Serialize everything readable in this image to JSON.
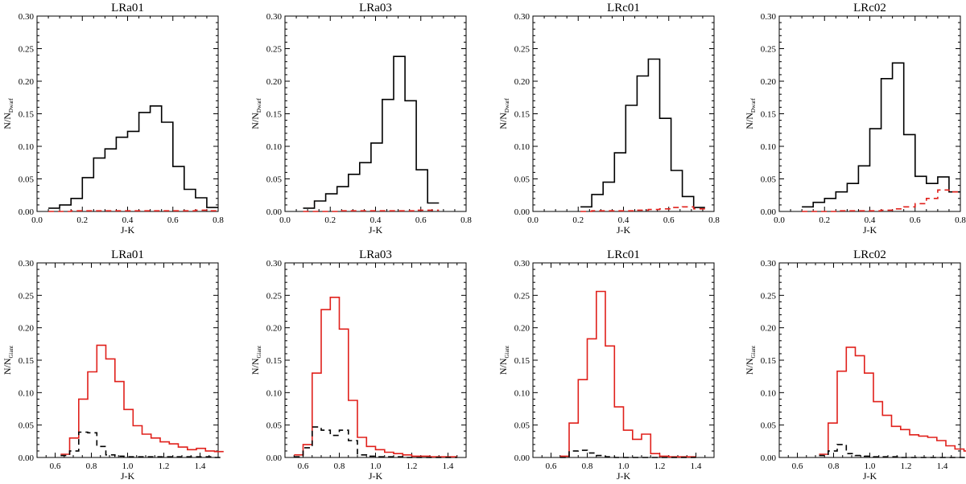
{
  "colors": {
    "black": "#000000",
    "red": "#e0201b"
  },
  "chart_data": [
    {
      "type": "line",
      "title": "LRa01",
      "xlabel": "J-K",
      "ylabel_main": "N/N",
      "ylabel_sub": "Dwarf",
      "xlim": [
        0.0,
        0.8
      ],
      "ylim": [
        0.0,
        0.3
      ],
      "xticks": [
        "0.0",
        "0.2",
        "0.4",
        "0.6",
        "0.8"
      ],
      "xtick_values": [
        0.0,
        0.2,
        0.4,
        0.6,
        0.8
      ],
      "yticks": [
        "0.00",
        "0.05",
        "0.10",
        "0.15",
        "0.20",
        "0.25",
        "0.30"
      ],
      "ytick_values": [
        0.0,
        0.05,
        0.1,
        0.15,
        0.2,
        0.25,
        0.3
      ],
      "bin_width": 0.05,
      "series": [
        {
          "name": "solid",
          "color": "#000000",
          "style": "solid",
          "x_start": 0.05,
          "values": [
            0.005,
            0.01,
            0.02,
            0.052,
            0.082,
            0.096,
            0.114,
            0.123,
            0.152,
            0.162,
            0.137,
            0.069,
            0.034,
            0.021,
            0.006
          ]
        },
        {
          "name": "dashed",
          "color": "#e0201b",
          "style": "dashed",
          "x_start": 0.05,
          "values": [
            0.0,
            0.0,
            0.001,
            0.001,
            0.001,
            0.001,
            0.001,
            0.001,
            0.001,
            0.001,
            0.001,
            0.001,
            0.001,
            0.002,
            0.001
          ]
        }
      ]
    },
    {
      "type": "line",
      "title": "LRa03",
      "xlabel": "J-K",
      "ylabel_main": "N/N",
      "ylabel_sub": "Dwarf",
      "xlim": [
        0.0,
        0.8
      ],
      "ylim": [
        0.0,
        0.3
      ],
      "xticks": [
        "0.0",
        "0.2",
        "0.4",
        "0.6",
        "0.8"
      ],
      "xtick_values": [
        0.0,
        0.2,
        0.4,
        0.6,
        0.8
      ],
      "yticks": [
        "0.00",
        "0.05",
        "0.10",
        "0.15",
        "0.20",
        "0.25",
        "0.30"
      ],
      "ytick_values": [
        0.0,
        0.05,
        0.1,
        0.15,
        0.2,
        0.25,
        0.3
      ],
      "bin_width": 0.05,
      "series": [
        {
          "name": "solid",
          "color": "#000000",
          "style": "solid",
          "x_start": 0.08,
          "values": [
            0.005,
            0.016,
            0.027,
            0.038,
            0.057,
            0.075,
            0.105,
            0.172,
            0.238,
            0.17,
            0.064,
            0.013
          ]
        },
        {
          "name": "dashed",
          "color": "#e0201b",
          "style": "dashed",
          "x_start": 0.08,
          "values": [
            0.0,
            0.0,
            0.0,
            0.001,
            0.001,
            0.001,
            0.001,
            0.001,
            0.001,
            0.001,
            0.002,
            0.002
          ]
        }
      ]
    },
    {
      "type": "line",
      "title": "LRc01",
      "xlabel": "J-K",
      "ylabel_main": "N/N",
      "ylabel_sub": "Dwarf",
      "xlim": [
        0.0,
        0.8
      ],
      "ylim": [
        0.0,
        0.3
      ],
      "xticks": [
        "0.0",
        "0.2",
        "0.4",
        "0.6",
        "0.8"
      ],
      "xtick_values": [
        0.0,
        0.2,
        0.4,
        0.6,
        0.8
      ],
      "yticks": [
        "0.00",
        "0.05",
        "0.10",
        "0.15",
        "0.20",
        "0.25",
        "0.30"
      ],
      "ytick_values": [
        0.0,
        0.05,
        0.1,
        0.15,
        0.2,
        0.25,
        0.3
      ],
      "bin_width": 0.05,
      "series": [
        {
          "name": "solid",
          "color": "#000000",
          "style": "solid",
          "x_start": 0.21,
          "values": [
            0.007,
            0.026,
            0.045,
            0.09,
            0.163,
            0.208,
            0.234,
            0.143,
            0.063,
            0.023,
            0.006
          ]
        },
        {
          "name": "dashed",
          "color": "#e0201b",
          "style": "dashed",
          "x_start": 0.21,
          "values": [
            0.0,
            0.001,
            0.001,
            0.001,
            0.001,
            0.002,
            0.003,
            0.004,
            0.006,
            0.007,
            0.004
          ]
        }
      ]
    },
    {
      "type": "line",
      "title": "LRc02",
      "xlabel": "J-K",
      "ylabel_main": "N/N",
      "ylabel_sub": "Dwarf",
      "xlim": [
        0.0,
        0.8
      ],
      "ylim": [
        0.0,
        0.3
      ],
      "xticks": [
        "0.0",
        "0.2",
        "0.4",
        "0.6",
        "0.8"
      ],
      "xtick_values": [
        0.0,
        0.2,
        0.4,
        0.6,
        0.8
      ],
      "yticks": [
        "0.00",
        "0.05",
        "0.10",
        "0.15",
        "0.20",
        "0.25",
        "0.30"
      ],
      "ytick_values": [
        0.0,
        0.05,
        0.1,
        0.15,
        0.2,
        0.25,
        0.3
      ],
      "bin_width": 0.05,
      "series": [
        {
          "name": "solid",
          "color": "#000000",
          "style": "solid",
          "x_start": 0.1,
          "values": [
            0.007,
            0.014,
            0.02,
            0.03,
            0.043,
            0.07,
            0.127,
            0.204,
            0.228,
            0.118,
            0.054,
            0.043,
            0.053,
            0.03
          ]
        },
        {
          "name": "dashed",
          "color": "#e0201b",
          "style": "dashed",
          "x_start": 0.1,
          "values": [
            0.0,
            0.0,
            0.0,
            0.001,
            0.001,
            0.001,
            0.001,
            0.002,
            0.004,
            0.007,
            0.012,
            0.02,
            0.033,
            0.03
          ]
        }
      ]
    },
    {
      "type": "line",
      "title": "LRa01",
      "xlabel": "J-K",
      "ylabel_main": "N/N",
      "ylabel_sub": "Giant",
      "xlim": [
        0.5,
        1.5
      ],
      "ylim": [
        0.0,
        0.3
      ],
      "xticks": [
        "0.6",
        "0.8",
        "1.0",
        "1.2",
        "1.4"
      ],
      "xtick_values": [
        0.6,
        0.8,
        1.0,
        1.2,
        1.4
      ],
      "yticks": [
        "0.00",
        "0.05",
        "0.10",
        "0.15",
        "0.20",
        "0.25",
        "0.30"
      ],
      "ytick_values": [
        0.0,
        0.05,
        0.1,
        0.15,
        0.2,
        0.25,
        0.3
      ],
      "bin_width": 0.05,
      "series": [
        {
          "name": "solid",
          "color": "#e0201b",
          "style": "solid",
          "x_start": 0.63,
          "values": [
            0.005,
            0.03,
            0.09,
            0.132,
            0.173,
            0.152,
            0.117,
            0.074,
            0.049,
            0.036,
            0.03,
            0.024,
            0.021,
            0.016,
            0.012,
            0.014,
            0.01,
            0.009
          ]
        },
        {
          "name": "dashed",
          "color": "#000000",
          "style": "dashed",
          "x_start": 0.63,
          "values": [
            0.003,
            0.01,
            0.039,
            0.038,
            0.017,
            0.004,
            0.002,
            0.001,
            0.001,
            0.001,
            0.001,
            0.001,
            0.001,
            0.001,
            0.001,
            0.001,
            0.001,
            0.0
          ]
        }
      ]
    },
    {
      "type": "line",
      "title": "LRa03",
      "xlabel": "J-K",
      "ylabel_main": "N/N",
      "ylabel_sub": "Giant",
      "xlim": [
        0.5,
        1.5
      ],
      "ylim": [
        0.0,
        0.3
      ],
      "xticks": [
        "0.6",
        "0.8",
        "1.0",
        "1.2",
        "1.4"
      ],
      "xtick_values": [
        0.6,
        0.8,
        1.0,
        1.2,
        1.4
      ],
      "yticks": [
        "0.00",
        "0.05",
        "0.10",
        "0.15",
        "0.20",
        "0.25",
        "0.30"
      ],
      "ytick_values": [
        0.0,
        0.05,
        0.1,
        0.15,
        0.2,
        0.25,
        0.3
      ],
      "bin_width": 0.05,
      "series": [
        {
          "name": "solid",
          "color": "#e0201b",
          "style": "solid",
          "x_start": 0.55,
          "values": [
            0.004,
            0.02,
            0.13,
            0.228,
            0.247,
            0.198,
            0.088,
            0.031,
            0.017,
            0.012,
            0.008,
            0.006,
            0.004,
            0.002,
            0.002,
            0.001,
            0.001,
            0.001
          ]
        },
        {
          "name": "dashed",
          "color": "#000000",
          "style": "dashed",
          "x_start": 0.55,
          "values": [
            0.001,
            0.015,
            0.047,
            0.042,
            0.034,
            0.042,
            0.026,
            0.004,
            0.002,
            0.001,
            0.001,
            0.001,
            0.0,
            0.0,
            0.0,
            0.0,
            0.0,
            0.0
          ]
        }
      ]
    },
    {
      "type": "line",
      "title": "LRc01",
      "xlabel": "J-K",
      "ylabel_main": "N/N",
      "ylabel_sub": "Giant",
      "xlim": [
        0.5,
        1.5
      ],
      "ylim": [
        0.0,
        0.3
      ],
      "xticks": [
        "0.6",
        "0.8",
        "1.0",
        "1.2",
        "1.4"
      ],
      "xtick_values": [
        0.6,
        0.8,
        1.0,
        1.2,
        1.4
      ],
      "yticks": [
        "0.00",
        "0.05",
        "0.10",
        "0.15",
        "0.20",
        "0.25",
        "0.30"
      ],
      "ytick_values": [
        0.0,
        0.05,
        0.1,
        0.15,
        0.2,
        0.25,
        0.3
      ],
      "bin_width": 0.05,
      "series": [
        {
          "name": "solid",
          "color": "#e0201b",
          "style": "solid",
          "x_start": 0.65,
          "values": [
            0.002,
            0.053,
            0.12,
            0.183,
            0.256,
            0.172,
            0.078,
            0.042,
            0.028,
            0.036,
            0.006,
            0.002,
            0.001,
            0.001,
            0.001
          ]
        },
        {
          "name": "dashed",
          "color": "#000000",
          "style": "dashed",
          "x_start": 0.65,
          "values": [
            0.0,
            0.01,
            0.011,
            0.007,
            0.003,
            0.001,
            0.0,
            0.0,
            0.0,
            0.0,
            0.0,
            0.0,
            0.0,
            0.0,
            0.0
          ]
        }
      ]
    },
    {
      "type": "line",
      "title": "LRc02",
      "xlabel": "J-K",
      "ylabel_main": "N/N",
      "ylabel_sub": "Giant",
      "xlim": [
        0.5,
        1.5
      ],
      "ylim": [
        0.0,
        0.3
      ],
      "xticks": [
        "0.6",
        "0.8",
        "1.0",
        "1.2",
        "1.4"
      ],
      "xtick_values": [
        0.6,
        0.8,
        1.0,
        1.2,
        1.4
      ],
      "yticks": [
        "0.00",
        "0.05",
        "0.10",
        "0.15",
        "0.20",
        "0.25",
        "0.30"
      ],
      "ytick_values": [
        0.0,
        0.05,
        0.1,
        0.15,
        0.2,
        0.25,
        0.3
      ],
      "bin_width": 0.05,
      "series": [
        {
          "name": "solid",
          "color": "#e0201b",
          "style": "solid",
          "x_start": 0.72,
          "values": [
            0.005,
            0.053,
            0.133,
            0.17,
            0.157,
            0.13,
            0.086,
            0.065,
            0.048,
            0.043,
            0.035,
            0.033,
            0.031,
            0.026,
            0.018,
            0.013,
            0.01
          ]
        },
        {
          "name": "dashed",
          "color": "#000000",
          "style": "dashed",
          "x_start": 0.72,
          "values": [
            0.003,
            0.01,
            0.02,
            0.006,
            0.003,
            0.002,
            0.001,
            0.001,
            0.001,
            0.0,
            0.0,
            0.0,
            0.0,
            0.0,
            0.0,
            0.0,
            0.0
          ]
        }
      ]
    }
  ]
}
